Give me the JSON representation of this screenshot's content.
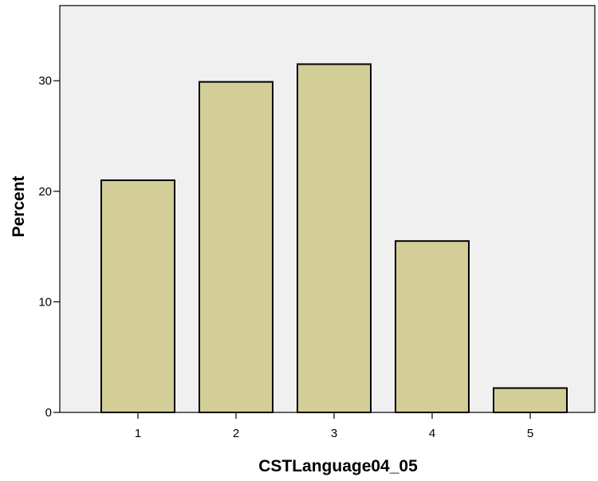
{
  "chart_data": {
    "type": "bar",
    "title": "",
    "xlabel": "CSTLanguage04_05",
    "ylabel": "Percent",
    "categories": [
      "1",
      "2",
      "3",
      "4",
      "5"
    ],
    "values": [
      21.0,
      29.9,
      31.5,
      15.5,
      2.2
    ],
    "ylim": [
      0,
      36.8
    ],
    "yticks": [
      "0",
      "10",
      "20",
      "30"
    ],
    "grid": false,
    "legend": "none",
    "colors": {
      "plot_background": "#f0f0f0",
      "bar_fill": "#d3ce97",
      "bar_stroke": "#000000"
    }
  }
}
